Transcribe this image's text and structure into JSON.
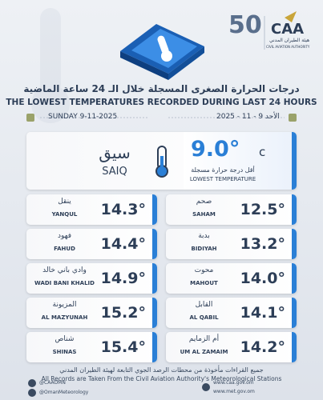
{
  "header": {
    "logo_number": "50",
    "logo_text": "CAA",
    "logo_ar": "هيئة الطيران المدني",
    "logo_en": "CIVIL AVIATION AUTHORITY"
  },
  "title": {
    "ar": "درجات الحرارة الصغرى المسجلة خلال الـ 24 ساعة الماضية",
    "en": "THE LOWEST TEMPERATURES RECORDED DURING LAST 24 HOURS"
  },
  "date": {
    "en": "SUNDAY 9-11-2025",
    "ar": "الأحد 9 - 11 - 2025"
  },
  "lowest": {
    "name_ar": "سيق",
    "name_en": "SAIQ",
    "value": "9.0°",
    "unit": "c",
    "label_ar": "أقل درجة حرارة مسجلة",
    "label_en": "LOWEST TEMPERATURE"
  },
  "stations": {
    "left": [
      {
        "ar": "ينقل",
        "en": "YANQUL",
        "value": "14.3°"
      },
      {
        "ar": "فهود",
        "en": "FAHUD",
        "value": "14.4°"
      },
      {
        "ar": "وادي باني خالد",
        "en": "WADI BANI KHALID",
        "value": "14.9°"
      },
      {
        "ar": "المزيونة",
        "en": "AL MAZYUNAH",
        "value": "15.2°"
      },
      {
        "ar": "شناص",
        "en": "SHINAS",
        "value": "15.4°"
      }
    ],
    "right": [
      {
        "ar": "صحم",
        "en": "SAHAM",
        "value": "12.5°"
      },
      {
        "ar": "بدبة",
        "en": "BIDIYAH",
        "value": "13.2°"
      },
      {
        "ar": "محوت",
        "en": "MAHOUT",
        "value": "14.0°"
      },
      {
        "ar": "القابل",
        "en": "AL QABIL",
        "value": "14.1°"
      },
      {
        "ar": "أم الزمايم",
        "en": "UM AL ZAMAIM",
        "value": "14.2°"
      }
    ]
  },
  "footer": {
    "ar": "جميع القراءات مأخوذة من محطات الرصد الجوي التابعة لهيئة الطيران المدني",
    "en": "All Records are Taken From the Civil Aviation Authority's Meteorological Stations",
    "social_1": "@CAAOMN",
    "social_2": "@OmanMeteorology",
    "web_1": "www.caa.gov.om",
    "web_2": "www.met.gov.om"
  }
}
